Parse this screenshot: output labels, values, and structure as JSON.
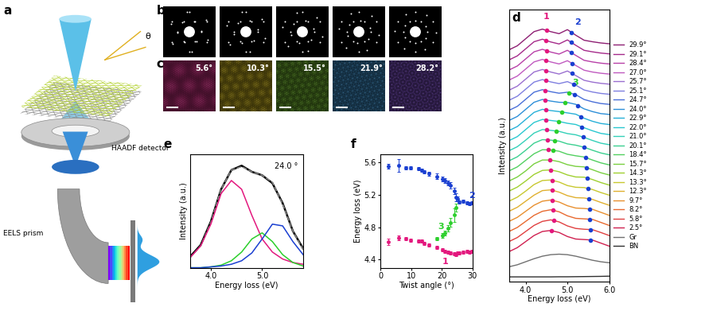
{
  "diagram": {
    "a": {
      "label": "a",
      "angle": "θ",
      "detector": "HAADF detector",
      "prism": "EELS prism"
    },
    "b": {
      "label": "b"
    },
    "c": {
      "label": "c",
      "angles": [
        5.6,
        10.3,
        15.5,
        21.9,
        28.2
      ],
      "angle_labels": [
        "5.6°",
        "10.3°",
        "15.5°",
        "21.9°",
        "28.2°"
      ],
      "colors": [
        "#d8358a",
        "#c8b020",
        "#70b030",
        "#3f8fc8",
        "#7a4fc0"
      ]
    }
  },
  "chart_data": [
    {
      "panel_label": "d",
      "type": "line",
      "xlabel": "Energy loss (eV)",
      "ylabel": "Intensity (a.u.)",
      "x": [
        3.6,
        3.8,
        4.0,
        4.2,
        4.4,
        4.6,
        4.8,
        5.0,
        5.2,
        5.4,
        5.6,
        5.8,
        6.0
      ],
      "xlim": [
        3.6,
        6.0
      ],
      "xticks": [
        4.0,
        5.0,
        6.0
      ],
      "ylim": [
        -0.5,
        26.5
      ],
      "tick_labels": "x",
      "legend": "right",
      "marker": "circle",
      "peak_colors": {
        "1": "#e3187e",
        "2": "#1a3fd1",
        "3": "#2ccf2c"
      },
      "series": [
        {
          "name": "29.9°",
          "color": "#8e1f73",
          "offset": 22.0,
          "values": [
            0.5,
            0.9,
            1.6,
            2.3,
            2.55,
            2.3,
            2.1,
            2.5,
            1.95,
            1.45,
            1.3,
            1.18,
            1.1
          ],
          "peaks": {
            "1": 4.5,
            "2": 5.1
          }
        },
        {
          "name": "29.1°",
          "color": "#a52a8a",
          "offset": 21.0,
          "values": [
            0.5,
            0.9,
            1.6,
            2.3,
            2.55,
            2.28,
            2.08,
            2.48,
            1.95,
            1.45,
            1.3,
            1.18,
            1.1
          ],
          "peaks": {
            "1": 4.49,
            "2": 5.09
          }
        },
        {
          "name": "28.4°",
          "color": "#b840a8",
          "offset": 20.0,
          "values": [
            0.5,
            0.9,
            1.6,
            2.3,
            2.55,
            2.28,
            2.08,
            2.45,
            1.95,
            1.46,
            1.3,
            1.18,
            1.1
          ],
          "peaks": {
            "1": 4.5,
            "2": 5.1
          }
        },
        {
          "name": "27.0°",
          "color": "#c05ac0",
          "offset": 19.0,
          "values": [
            0.5,
            0.9,
            1.6,
            2.3,
            2.55,
            2.3,
            2.1,
            2.42,
            1.95,
            1.48,
            1.3,
            1.18,
            1.1
          ],
          "peaks": {
            "1": 4.49,
            "2": 5.12
          }
        },
        {
          "name": "25.7°",
          "color": "#9a6fd0",
          "offset": 18.0,
          "values": [
            0.5,
            0.9,
            1.6,
            2.3,
            2.55,
            2.3,
            2.1,
            2.4,
            1.95,
            1.48,
            1.3,
            1.18,
            1.1
          ],
          "peaks": {
            "1": 4.48,
            "2": 5.11
          }
        },
        {
          "name": "25.1°",
          "color": "#7f7fe0",
          "offset": 17.0,
          "values": [
            0.5,
            0.9,
            1.6,
            2.3,
            2.55,
            2.32,
            2.15,
            2.35,
            2.0,
            1.52,
            1.32,
            1.18,
            1.1
          ],
          "peaks": {
            "1": 4.48,
            "2": 5.15
          }
        },
        {
          "name": "24.7°",
          "color": "#4a6fd8",
          "offset": 16.0,
          "values": [
            0.5,
            0.9,
            1.6,
            2.3,
            2.55,
            2.35,
            2.2,
            2.3,
            2.05,
            1.58,
            1.35,
            1.18,
            1.1
          ],
          "peaks": {
            "1": 4.46,
            "2": 5.17,
            "3": 5.04
          }
        },
        {
          "name": "24.0°",
          "color": "#2d8fd8",
          "offset": 15.0,
          "values": [
            0.5,
            0.9,
            1.6,
            2.3,
            2.58,
            2.42,
            2.3,
            2.28,
            2.1,
            1.65,
            1.38,
            1.18,
            1.1
          ],
          "peaks": {
            "1": 4.47,
            "2": 5.25,
            "3": 4.95
          }
        },
        {
          "name": "22.9°",
          "color": "#27b0d8",
          "offset": 14.0,
          "values": [
            0.5,
            0.9,
            1.6,
            2.3,
            2.6,
            2.48,
            2.38,
            2.25,
            2.12,
            1.72,
            1.42,
            1.2,
            1.1
          ],
          "peaks": {
            "1": 4.48,
            "2": 5.32,
            "3": 4.86
          }
        },
        {
          "name": "22.0°",
          "color": "#2ac8d0",
          "offset": 13.0,
          "values": [
            0.5,
            0.9,
            1.6,
            2.3,
            2.6,
            2.5,
            2.4,
            2.22,
            2.1,
            1.78,
            1.48,
            1.22,
            1.1
          ],
          "peaks": {
            "1": 4.49,
            "2": 5.35,
            "3": 4.79
          }
        },
        {
          "name": "21.0°",
          "color": "#33d0b8",
          "offset": 12.0,
          "values": [
            0.5,
            0.9,
            1.55,
            2.25,
            2.6,
            2.52,
            2.42,
            2.2,
            2.08,
            1.82,
            1.52,
            1.25,
            1.1
          ],
          "peaks": {
            "1": 4.5,
            "2": 5.38,
            "3": 4.73
          }
        },
        {
          "name": "20.1°",
          "color": "#3bd090",
          "offset": 11.0,
          "values": [
            0.5,
            0.9,
            1.55,
            2.25,
            2.6,
            2.55,
            2.45,
            2.18,
            2.05,
            1.85,
            1.55,
            1.28,
            1.1
          ],
          "peaks": {
            "1": 4.52,
            "2": 5.4,
            "3": 4.7
          }
        },
        {
          "name": "18.4°",
          "color": "#52d060",
          "offset": 10.0,
          "values": [
            0.5,
            0.9,
            1.55,
            2.2,
            2.6,
            2.58,
            2.45,
            2.15,
            2.0,
            1.88,
            1.58,
            1.3,
            1.1
          ],
          "peaks": {
            "1": 4.55,
            "2": 5.43,
            "3": 4.66
          }
        },
        {
          "name": "15.7°",
          "color": "#7ad040",
          "offset": 9.0,
          "values": [
            0.5,
            0.9,
            1.5,
            2.2,
            2.58,
            2.58,
            2.42,
            2.12,
            1.95,
            1.9,
            1.62,
            1.32,
            1.1
          ],
          "peaks": {
            "1": 4.58,
            "2": 5.46
          }
        },
        {
          "name": "14.3°",
          "color": "#a0d030",
          "offset": 8.0,
          "values": [
            0.5,
            0.9,
            1.5,
            2.15,
            2.55,
            2.6,
            2.42,
            2.1,
            1.9,
            1.88,
            1.65,
            1.35,
            1.1
          ],
          "peaks": {
            "1": 4.6,
            "2": 5.48
          }
        },
        {
          "name": "13.3°",
          "color": "#c8c830",
          "offset": 7.0,
          "values": [
            0.5,
            0.9,
            1.5,
            2.15,
            2.55,
            2.6,
            2.4,
            2.05,
            1.88,
            1.85,
            1.66,
            1.36,
            1.1
          ],
          "peaks": {
            "1": 4.63,
            "2": 5.5
          }
        },
        {
          "name": "12.3°",
          "color": "#e0b030",
          "offset": 6.0,
          "values": [
            0.5,
            0.9,
            1.5,
            2.1,
            2.55,
            2.62,
            2.4,
            2.05,
            1.85,
            1.82,
            1.68,
            1.38,
            1.1
          ],
          "peaks": {
            "1": 4.63,
            "2": 5.52
          }
        },
        {
          "name": "9.7°",
          "color": "#e89030",
          "offset": 5.0,
          "values": [
            0.5,
            0.9,
            1.5,
            2.1,
            2.5,
            2.62,
            2.42,
            2.05,
            1.82,
            1.78,
            1.7,
            1.4,
            1.1
          ],
          "peaks": {
            "1": 4.64,
            "2": 5.53
          }
        },
        {
          "name": "8.2°",
          "color": "#e86a30",
          "offset": 4.0,
          "values": [
            0.5,
            0.9,
            1.5,
            2.1,
            2.5,
            2.65,
            2.45,
            2.05,
            1.8,
            1.75,
            1.7,
            1.4,
            1.1
          ],
          "peaks": {
            "1": 4.66,
            "2": 5.53
          }
        },
        {
          "name": "5.8°",
          "color": "#e04040",
          "offset": 3.0,
          "values": [
            0.5,
            0.9,
            1.5,
            2.1,
            2.5,
            2.65,
            2.45,
            2.05,
            1.8,
            1.72,
            1.68,
            1.4,
            1.1
          ],
          "peaks": {
            "1": 4.67,
            "2": 5.56
          }
        },
        {
          "name": "2.5°",
          "color": "#d02050",
          "offset": 2.0,
          "values": [
            0.5,
            0.9,
            1.5,
            2.1,
            2.5,
            2.6,
            2.4,
            2.0,
            1.75,
            1.7,
            1.65,
            1.35,
            1.05
          ],
          "peaks": {
            "1": 4.62,
            "2": 5.55
          }
        },
        {
          "name": "Gr",
          "color": "#707070",
          "offset": 0.8,
          "values": [
            0.2,
            0.4,
            0.7,
            1.0,
            1.25,
            1.4,
            1.45,
            1.4,
            1.25,
            1.05,
            0.85,
            0.7,
            0.6
          ]
        },
        {
          "name": "BN",
          "color": "#303030",
          "offset": 0.0,
          "values": [
            0.0,
            0.0,
            0.0,
            0.0,
            0.0,
            0.0,
            0.01,
            0.01,
            0.02,
            0.03,
            0.04,
            0.05,
            0.07
          ]
        }
      ]
    },
    {
      "panel_label": "e",
      "type": "line",
      "xlabel": "Energy loss (eV)",
      "ylabel": "Intensity (a.u.)",
      "annotation": "24.0 °",
      "x": [
        3.6,
        3.8,
        4.0,
        4.2,
        4.4,
        4.6,
        4.8,
        5.0,
        5.2,
        5.4,
        5.6,
        5.8
      ],
      "xlim": [
        3.6,
        5.8
      ],
      "xticks": [
        4.0,
        5.0
      ],
      "ylim": [
        0,
        1.3
      ],
      "tick_labels": "x",
      "series": [
        {
          "color": "#000000",
          "line_style": "solid",
          "values": [
            0.13,
            0.26,
            0.53,
            0.9,
            1.12,
            1.17,
            1.1,
            1.06,
            0.97,
            0.74,
            0.42,
            0.22
          ]
        },
        {
          "color": "#888888",
          "line_style": "dashed",
          "values": [
            0.12,
            0.25,
            0.52,
            0.9,
            1.12,
            1.16,
            1.1,
            1.06,
            0.98,
            0.73,
            0.42,
            0.21
          ]
        },
        {
          "color": "#e3187e",
          "line_style": "solid",
          "values": [
            0.12,
            0.25,
            0.5,
            0.85,
            1.0,
            0.9,
            0.6,
            0.33,
            0.18,
            0.1,
            0.06,
            0.04
          ]
        },
        {
          "color": "#2ccf2c",
          "line_style": "solid",
          "values": [
            0.0,
            0.0,
            0.01,
            0.03,
            0.08,
            0.18,
            0.33,
            0.4,
            0.3,
            0.15,
            0.06,
            0.02
          ]
        },
        {
          "color": "#1a3fd1",
          "line_style": "solid",
          "values": [
            0.0,
            0.0,
            0.01,
            0.02,
            0.04,
            0.08,
            0.17,
            0.33,
            0.5,
            0.48,
            0.3,
            0.15
          ]
        }
      ]
    },
    {
      "panel_label": "f",
      "type": "scatter",
      "xlabel": "Twist angle (°)",
      "ylabel": "Energy loss (eV)",
      "xlim": [
        0,
        30
      ],
      "xticks": [
        0,
        10,
        20,
        30
      ],
      "ylim": [
        4.3,
        5.7
      ],
      "yticks": [
        4.4,
        4.8,
        5.2,
        5.6
      ],
      "marker": "circle",
      "series": [
        {
          "name": "1",
          "color": "#e3187e",
          "x": [
            2.5,
            5.8,
            8.2,
            9.7,
            12.3,
            13.3,
            14.3,
            15.7,
            18.4,
            20.1,
            21.0,
            22.0,
            22.9,
            24.0,
            24.7,
            25.1,
            25.7,
            27.0,
            28.4,
            29.1,
            29.9
          ],
          "values": [
            4.62,
            4.67,
            4.66,
            4.64,
            4.63,
            4.63,
            4.6,
            4.58,
            4.55,
            4.52,
            4.5,
            4.49,
            4.48,
            4.47,
            4.46,
            4.48,
            4.48,
            4.49,
            4.5,
            4.49,
            4.5
          ],
          "errors": [
            0.04,
            0.03,
            0.02,
            0.02,
            0.02,
            0.02,
            0.02,
            0.02,
            0.02,
            0.02,
            0.02,
            0.02,
            0.02,
            0.02,
            0.02,
            0.02,
            0.02,
            0.02,
            0.02,
            0.02,
            0.02
          ]
        },
        {
          "name": "2",
          "color": "#1a3fd1",
          "x": [
            2.5,
            5.8,
            8.2,
            9.7,
            12.3,
            13.3,
            14.3,
            15.7,
            18.4,
            20.1,
            21.0,
            22.0,
            22.9,
            24.0,
            24.7,
            25.1,
            25.7,
            27.0,
            28.4,
            29.1,
            29.9
          ],
          "values": [
            5.55,
            5.56,
            5.53,
            5.53,
            5.52,
            5.5,
            5.48,
            5.46,
            5.43,
            5.4,
            5.38,
            5.35,
            5.32,
            5.25,
            5.17,
            5.15,
            5.11,
            5.12,
            5.1,
            5.09,
            5.1
          ],
          "errors": [
            0.03,
            0.08,
            0.02,
            0.02,
            0.02,
            0.02,
            0.02,
            0.02,
            0.03,
            0.03,
            0.03,
            0.03,
            0.04,
            0.04,
            0.05,
            0.03,
            0.02,
            0.02,
            0.02,
            0.02,
            0.02
          ]
        },
        {
          "name": "3",
          "color": "#2ccf2c",
          "x": [
            18.4,
            20.1,
            21.0,
            22.0,
            22.9,
            24.0,
            24.7
          ],
          "values": [
            4.66,
            4.7,
            4.73,
            4.79,
            4.86,
            4.95,
            5.04
          ],
          "errors": [
            0.02,
            0.03,
            0.03,
            0.04,
            0.05,
            0.08,
            0.05
          ]
        }
      ]
    }
  ]
}
